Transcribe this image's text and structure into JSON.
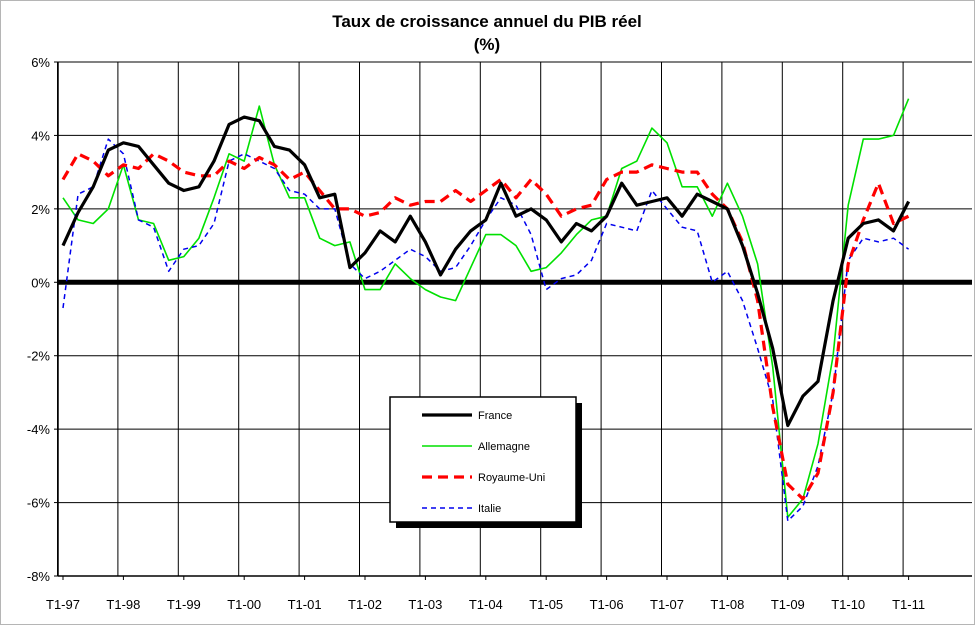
{
  "chart_data": {
    "type": "line",
    "title": "Taux de croissance annuel du PIB réel",
    "subtitle": "(%)",
    "xlabel": "",
    "ylabel": "",
    "ylim": [
      -8,
      6
    ],
    "yticks": [
      -8,
      -6,
      -4,
      -2,
      0,
      2,
      4,
      6
    ],
    "ytick_labels": [
      "-8%",
      "-6%",
      "-4%",
      "-2%",
      "0%",
      "2%",
      "4%",
      "6%"
    ],
    "x_start": "T1-97",
    "categories_labeled": [
      "T1-97",
      "T1-98",
      "T1-99",
      "T1-00",
      "T1-01",
      "T1-02",
      "T1-03",
      "T1-04",
      "T1-05",
      "T1-06",
      "T1-07",
      "T1-08",
      "T1-09",
      "T1-10",
      "T1-11"
    ],
    "grid": true,
    "legend_position": "bottom-center",
    "series": [
      {
        "name": "France",
        "color": "#000000",
        "dash": "solid",
        "values": [
          1.0,
          1.9,
          2.6,
          3.6,
          3.8,
          3.7,
          3.2,
          2.7,
          2.5,
          2.6,
          3.3,
          4.3,
          4.5,
          4.4,
          3.7,
          3.6,
          3.2,
          2.3,
          2.4,
          0.4,
          0.8,
          1.4,
          1.1,
          1.8,
          1.1,
          0.2,
          0.9,
          1.4,
          1.7,
          2.7,
          1.8,
          2.0,
          1.7,
          1.1,
          1.6,
          1.4,
          1.8,
          2.7,
          2.1,
          2.2,
          2.3,
          1.8,
          2.4,
          2.2,
          2.0,
          1.0,
          -0.3,
          -1.8,
          -3.9,
          -3.1,
          -2.7,
          -0.5,
          1.2,
          1.6,
          1.7,
          1.4,
          2.2
        ]
      },
      {
        "name": "Allemagne",
        "color": "#00e000",
        "dash": "solid",
        "values": [
          2.3,
          1.7,
          1.6,
          2.0,
          3.2,
          1.7,
          1.6,
          0.6,
          0.7,
          1.2,
          2.3,
          3.5,
          3.3,
          4.8,
          3.2,
          2.3,
          2.3,
          1.2,
          1.0,
          1.1,
          -0.2,
          -0.2,
          0.5,
          0.1,
          -0.2,
          -0.4,
          -0.5,
          0.4,
          1.3,
          1.3,
          1.0,
          0.3,
          0.4,
          0.8,
          1.3,
          1.7,
          1.8,
          3.1,
          3.3,
          4.2,
          3.8,
          2.6,
          2.6,
          1.8,
          2.7,
          1.8,
          0.5,
          -2.3,
          -6.4,
          -5.9,
          -4.4,
          -2.0,
          2.1,
          3.9,
          3.9,
          4.0,
          5.0
        ]
      },
      {
        "name": "Royaume-Uni",
        "color": "#ff0000",
        "dash": "dashed",
        "values": [
          2.8,
          3.5,
          3.3,
          2.9,
          3.2,
          3.1,
          3.5,
          3.3,
          3.0,
          2.9,
          2.9,
          3.3,
          3.1,
          3.4,
          3.2,
          2.8,
          3.0,
          2.5,
          2.0,
          2.0,
          1.8,
          1.9,
          2.3,
          2.1,
          2.2,
          2.2,
          2.5,
          2.2,
          2.5,
          2.8,
          2.3,
          2.8,
          2.4,
          1.8,
          2.0,
          2.1,
          2.8,
          3.0,
          3.0,
          3.2,
          3.1,
          3.0,
          3.0,
          2.4,
          2.0,
          1.1,
          -0.5,
          -3.4,
          -5.5,
          -5.9,
          -5.2,
          -3.0,
          0.5,
          1.7,
          2.7,
          1.6,
          1.8
        ]
      },
      {
        "name": "Italie",
        "color": "#0000ee",
        "dash": "dashed",
        "values": [
          -0.7,
          2.4,
          2.6,
          3.9,
          3.5,
          1.7,
          1.5,
          0.3,
          0.9,
          1.0,
          1.6,
          3.3,
          3.5,
          3.3,
          3.1,
          2.5,
          2.4,
          2.0,
          2.0,
          0.5,
          0.1,
          0.3,
          0.6,
          0.9,
          0.7,
          0.3,
          0.4,
          1.0,
          1.7,
          2.3,
          2.1,
          1.3,
          -0.2,
          0.1,
          0.2,
          0.6,
          1.6,
          1.5,
          1.4,
          2.5,
          2.0,
          1.5,
          1.4,
          0.0,
          0.3,
          -0.5,
          -1.8,
          -3.2,
          -6.5,
          -6.1,
          -5.0,
          -3.0,
          0.6,
          1.2,
          1.1,
          1.2,
          0.9
        ]
      }
    ]
  }
}
